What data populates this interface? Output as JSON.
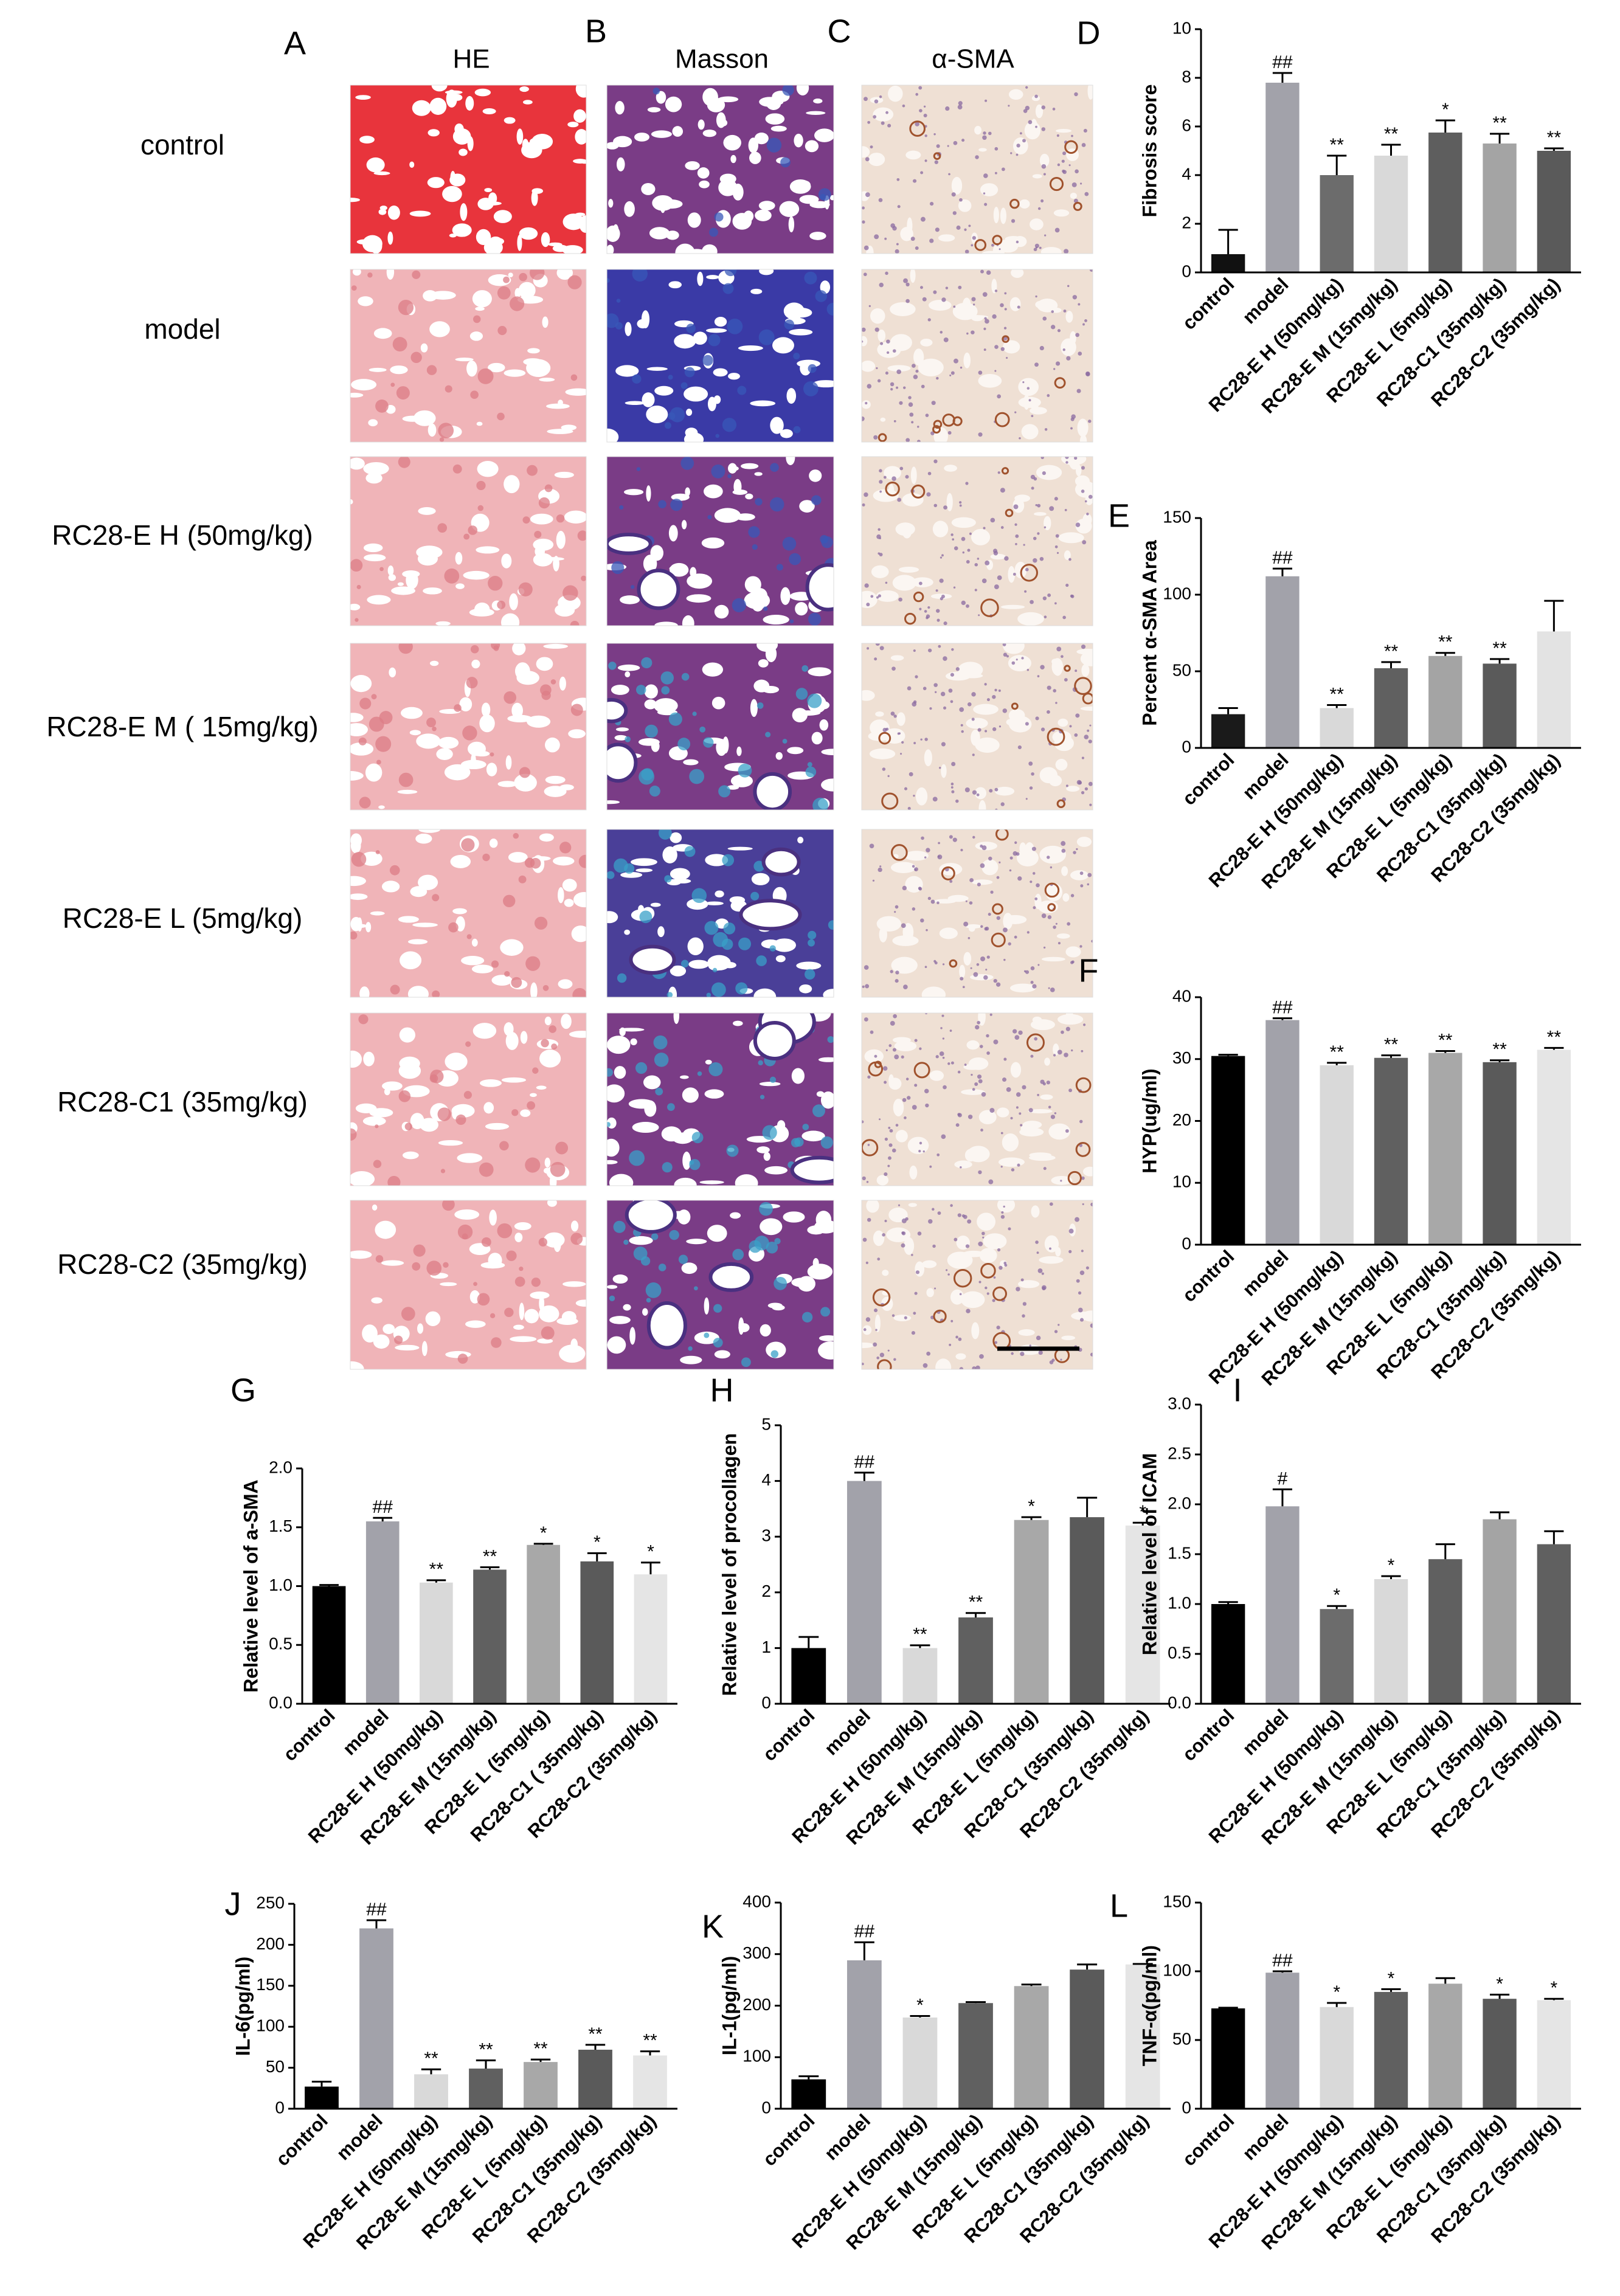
{
  "histology": {
    "letters": [
      "A",
      "B",
      "C"
    ],
    "columns": [
      "HE",
      "Masson",
      "α-SMA"
    ],
    "rows": [
      "control",
      "model",
      "RC28-E H (50mg/kg)",
      "RC28-E M ( 15mg/kg)",
      "RC28-E L (5mg/kg)",
      "RC28-C1 (35mg/kg)",
      "RC28-C2 (35mg/kg)"
    ]
  },
  "chart_data": [
    {
      "type": "bar",
      "panel": "D",
      "ylabel": "Fibrosis score",
      "categories": [
        "control",
        "model",
        "RC28-E H (50mg/kg)",
        "RC28-E M (15mg/kg)",
        "RC28-E L (5mg/kg)",
        "RC28-C1 (35mg/kg)",
        "RC28-C2 (35mg/kg)"
      ],
      "values": [
        0.75,
        7.8,
        4.0,
        4.8,
        5.75,
        5.3,
        5.0
      ],
      "errors": [
        1.0,
        0.4,
        0.8,
        0.45,
        0.5,
        0.4,
        0.1
      ],
      "annotations": [
        null,
        "##",
        "**",
        "**",
        "*",
        "**",
        "**"
      ],
      "colors": [
        "#111111",
        "#a2a2aa",
        "#6c6c6c",
        "#d9d9d9",
        "#5e5e5e",
        "#a4a4a4",
        "#5a5a5a"
      ],
      "ylim": [
        0,
        10
      ],
      "yticks": [
        0,
        2,
        4,
        6,
        8,
        10
      ]
    },
    {
      "type": "bar",
      "panel": "E",
      "ylabel": "Percent α-SMA Area",
      "categories": [
        "control",
        "model",
        "RC28-E H (50mg/kg)",
        "RC28-E M (15mg/kg)",
        "RC28-E L (5mg/kg)",
        "RC28-C1 (35mg/kg)",
        "RC28-C2 (35mg/kg)"
      ],
      "values": [
        22,
        112,
        26,
        52,
        60,
        55,
        76
      ],
      "errors": [
        4,
        5,
        2,
        4,
        2,
        3,
        20
      ],
      "annotations": [
        null,
        "##",
        "**",
        "**",
        "**",
        "**",
        null
      ],
      "colors": [
        "#1a1a1a",
        "#a2a2aa",
        "#d9d9d9",
        "#606060",
        "#a4a4a4",
        "#5a5a5a",
        "#e3e3e3"
      ],
      "ylim": [
        0,
        150
      ],
      "yticks": [
        0,
        50,
        100,
        150
      ]
    },
    {
      "type": "bar",
      "panel": "F",
      "ylabel": "HYP(ug/ml)",
      "categories": [
        "control",
        "model",
        "RC28-E H (50mg/kg)",
        "RC28-E M (15mg/kg)",
        "RC28-E L (5mg/kg)",
        "RC28-C1 (35mg/kg)",
        "RC28-C2 (35mg/kg)"
      ],
      "values": [
        30.5,
        36.3,
        29,
        30.2,
        31,
        29.5,
        31.5
      ],
      "errors": [
        0.2,
        0.3,
        0.4,
        0.4,
        0.3,
        0.3,
        0.3
      ],
      "annotations": [
        null,
        "##",
        "**",
        "**",
        "**",
        "**",
        "**"
      ],
      "colors": [
        "#000000",
        "#a2a2aa",
        "#d9d9d9",
        "#606060",
        "#a8a8a8",
        "#5a5a5a",
        "#e5e5e5"
      ],
      "ylim": [
        0,
        40
      ],
      "yticks": [
        0,
        10,
        20,
        30,
        40
      ]
    },
    {
      "type": "bar",
      "panel": "G",
      "ylabel": "Relative level of a-SMA",
      "categories": [
        "control",
        "model",
        "RC28-E H (50mg/kg)",
        "RC28-E M (15mg/kg)",
        "RC28-E L (5mg/kg)",
        "RC28-C1 ( 35mg/kg)",
        "RC28-C2 (35mg/kg)"
      ],
      "values": [
        1.0,
        1.55,
        1.03,
        1.14,
        1.35,
        1.21,
        1.1
      ],
      "errors": [
        0.01,
        0.03,
        0.02,
        0.02,
        0.01,
        0.07,
        0.1
      ],
      "annotations": [
        null,
        "##",
        "**",
        "**",
        "*",
        "*",
        "*"
      ],
      "colors": [
        "#000000",
        "#a2a2aa",
        "#d9d9d9",
        "#606060",
        "#a8a8a8",
        "#5a5a5a",
        "#e5e5e5"
      ],
      "ylim": [
        0,
        2
      ],
      "yticks": [
        {
          "value": 0,
          "label": "0.0"
        },
        {
          "value": 0.5,
          "label": "0.5"
        },
        {
          "value": 1,
          "label": "1.0"
        },
        {
          "value": 1.5,
          "label": "1.5"
        },
        {
          "value": 2,
          "label": "2.0"
        }
      ]
    },
    {
      "type": "bar",
      "panel": "H",
      "ylabel": "Relative level of procollagen",
      "categories": [
        "control",
        "model",
        "RC28-E H (50mg/kg)",
        "RC28-E M (15mg/kg)",
        "RC28-E L (5mg/kg)",
        "RC28-C1 (35mg/kg)",
        "RC28-C2 (35mg/kg)"
      ],
      "values": [
        1.0,
        4.0,
        1.0,
        1.55,
        3.3,
        3.35,
        3.2
      ],
      "errors": [
        0.2,
        0.15,
        0.05,
        0.08,
        0.05,
        0.35,
        0.05
      ],
      "annotations": [
        null,
        "##",
        "**",
        "**",
        "*",
        null,
        "*"
      ],
      "colors": [
        "#000000",
        "#a2a2aa",
        "#d9d9d9",
        "#606060",
        "#a8a8a8",
        "#5a5a5a",
        "#e5e5e5"
      ],
      "ylim": [
        0,
        5
      ],
      "yticks": [
        0,
        1,
        2,
        3,
        4,
        5
      ]
    },
    {
      "type": "bar",
      "panel": "I",
      "ylabel": "Relative level of ICAM",
      "categories": [
        "control",
        "model",
        "RC28-E H (50mg/kg)",
        "RC28-E M (15mg/kg)",
        "RC28-E L (5mg/kg)",
        "RC28-C1 (35mg/kg)",
        "RC28-C2 (35mg/kg)"
      ],
      "values": [
        1.0,
        1.98,
        0.95,
        1.25,
        1.45,
        1.85,
        1.6
      ],
      "errors": [
        0.02,
        0.17,
        0.03,
        0.03,
        0.15,
        0.07,
        0.13
      ],
      "annotations": [
        null,
        "#",
        "*",
        "*",
        null,
        null,
        null
      ],
      "colors": [
        "#000000",
        "#a2a2aa",
        "#6c6c6c",
        "#d9d9d9",
        "#606060",
        "#a4a4a4",
        "#606060"
      ],
      "ylim": [
        0,
        3
      ],
      "yticks": [
        {
          "value": 0,
          "label": "0.0"
        },
        {
          "value": 0.5,
          "label": "0.5"
        },
        {
          "value": 1,
          "label": "1.0"
        },
        {
          "value": 1.5,
          "label": "1.5"
        },
        {
          "value": 2,
          "label": "2.0"
        },
        {
          "value": 2.5,
          "label": "2.5"
        },
        {
          "value": 3,
          "label": "3.0"
        }
      ]
    },
    {
      "type": "bar",
      "panel": "J",
      "ylabel": "IL-6(pg/ml)",
      "categories": [
        "control",
        "model",
        "RC28-E H (50mg/kg)",
        "RC28-E M (15mg/kg)",
        "RC28-E L (5mg/kg)",
        "RC28-C1 (35mg/kg)",
        "RC28-C2 (35mg/kg)"
      ],
      "values": [
        27,
        220,
        42,
        49,
        57,
        72,
        65
      ],
      "errors": [
        6,
        10,
        6,
        10,
        3,
        6,
        5
      ],
      "annotations": [
        null,
        "##",
        "**",
        "**",
        "**",
        "**",
        "**"
      ],
      "colors": [
        "#000000",
        "#a2a2aa",
        "#d9d9d9",
        "#606060",
        "#a8a8a8",
        "#5a5a5a",
        "#e5e5e5"
      ],
      "ylim": [
        0,
        250
      ],
      "yticks": [
        0,
        50,
        100,
        150,
        200,
        250
      ]
    },
    {
      "type": "bar",
      "panel": "K",
      "ylabel": "IL-1(pg/ml)",
      "categories": [
        "control",
        "model",
        "RC28-E H (50mg/kg)",
        "RC28-E M (15mg/kg)",
        "RC28-E L (5mg/kg)",
        "RC28-C1 (35mg/kg)",
        "RC28-C2 (35mg/kg)"
      ],
      "values": [
        57,
        288,
        177,
        205,
        238,
        270,
        280
      ],
      "errors": [
        6,
        35,
        3,
        2,
        3,
        10,
        1
      ],
      "annotations": [
        null,
        "##",
        "*",
        null,
        null,
        null,
        null
      ],
      "colors": [
        "#000000",
        "#a2a2aa",
        "#d9d9d9",
        "#606060",
        "#a8a8a8",
        "#5a5a5a",
        "#e5e5e5"
      ],
      "ylim": [
        0,
        400
      ],
      "yticks": [
        0,
        100,
        200,
        300,
        400
      ]
    },
    {
      "type": "bar",
      "panel": "L",
      "ylabel": "TNF-α(pg/ml)",
      "categories": [
        "control",
        "model",
        "RC28-E H (50mg/kg)",
        "RC28-E M (15mg/kg)",
        "RC28-E L (5mg/kg)",
        "RC28-C1 (35mg/kg)",
        "RC28-C2 (35mg/kg)"
      ],
      "values": [
        73,
        99,
        74,
        85,
        91,
        80,
        79
      ],
      "errors": [
        0.5,
        1,
        3,
        2,
        4,
        3,
        1
      ],
      "annotations": [
        null,
        "##",
        "*",
        "*",
        null,
        "*",
        "*"
      ],
      "colors": [
        "#000000",
        "#a2a2aa",
        "#d9d9d9",
        "#606060",
        "#a8a8a8",
        "#5a5a5a",
        "#e5e5e5"
      ],
      "ylim": [
        0,
        150
      ],
      "yticks": [
        0,
        50,
        100,
        150
      ]
    }
  ]
}
